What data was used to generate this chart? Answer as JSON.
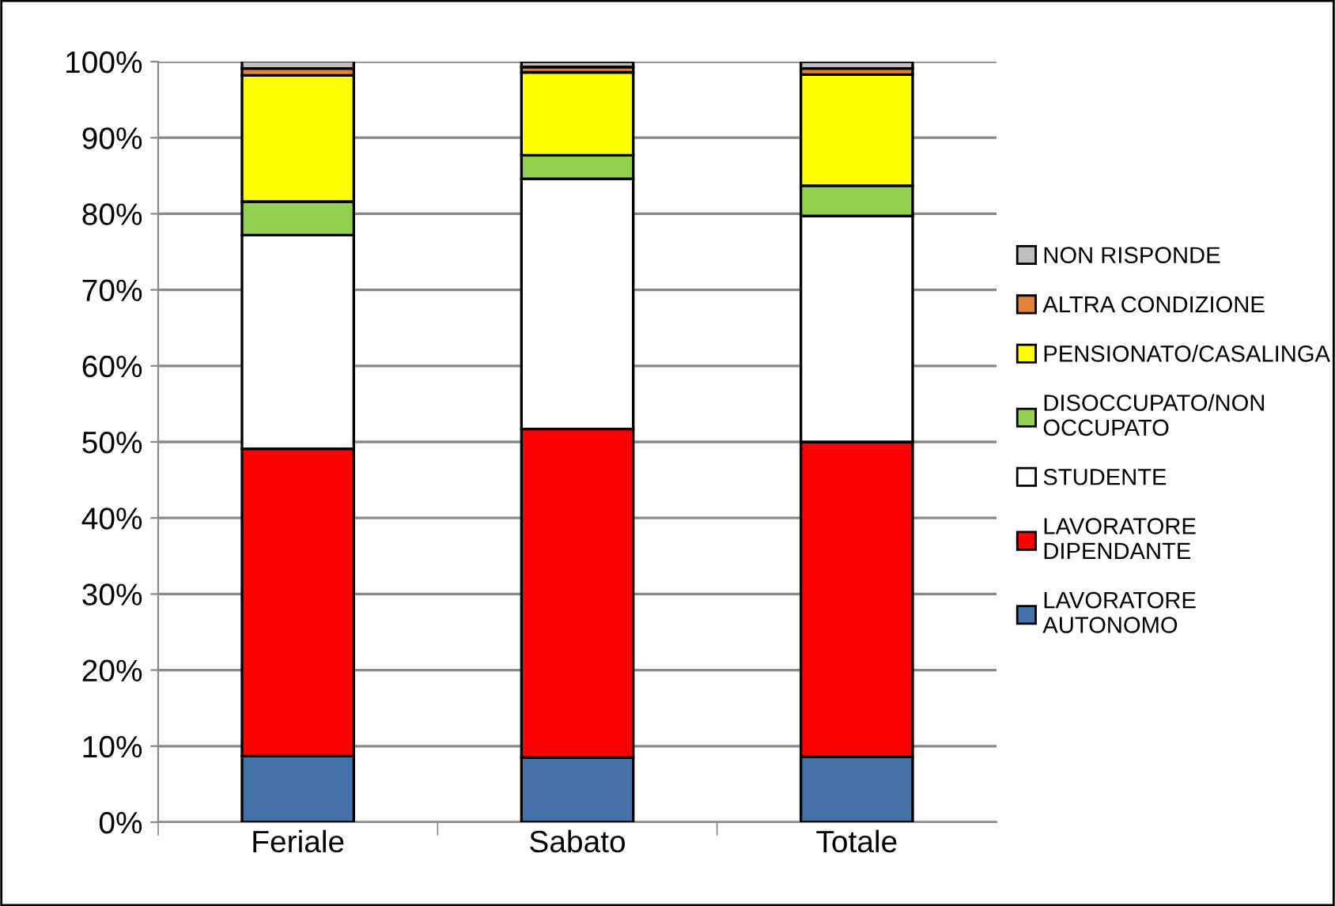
{
  "chart_data": {
    "type": "bar",
    "stacked": true,
    "categories": [
      "Feriale",
      "Sabato",
      "Totale"
    ],
    "series": [
      {
        "name": "LAVORATORE AUTONOMO",
        "color": "#4472a8",
        "values": [
          8.7,
          8.5,
          8.6
        ]
      },
      {
        "name": "LAVORATORE DIPENDANTE",
        "color": "#ff0000",
        "values": [
          40.4,
          43.2,
          41.4
        ]
      },
      {
        "name": "STUDENTE",
        "color": "#ffffff",
        "values": [
          28.1,
          32.9,
          29.7
        ]
      },
      {
        "name": "DISOCCUPATO/NON OCCUPATO",
        "color": "#92d050",
        "values": [
          4.4,
          3.1,
          4.0
        ]
      },
      {
        "name": "PENSIONATO/CASALINGA",
        "color": "#ffff00",
        "values": [
          16.6,
          10.9,
          14.6
        ]
      },
      {
        "name": "ALTRA CONDIZIONE",
        "color": "#e0823c",
        "values": [
          0.9,
          0.7,
          0.8
        ]
      },
      {
        "name": "NON RISPONDE",
        "color": "#bfbfbf",
        "values": [
          1.0,
          0.7,
          0.9
        ]
      }
    ],
    "ylim": [
      0,
      100
    ],
    "yticks": [
      {
        "value": 0,
        "label": "0%"
      },
      {
        "value": 10,
        "label": "10%"
      },
      {
        "value": 20,
        "label": "20%"
      },
      {
        "value": 30,
        "label": "30%"
      },
      {
        "value": 40,
        "label": "40%"
      },
      {
        "value": 50,
        "label": "50%"
      },
      {
        "value": 60,
        "label": "60%"
      },
      {
        "value": 70,
        "label": "70%"
      },
      {
        "value": 80,
        "label": "80%"
      },
      {
        "value": 90,
        "label": "90%"
      },
      {
        "value": 100,
        "label": "100%"
      }
    ],
    "grid": "y",
    "legend": "right"
  }
}
